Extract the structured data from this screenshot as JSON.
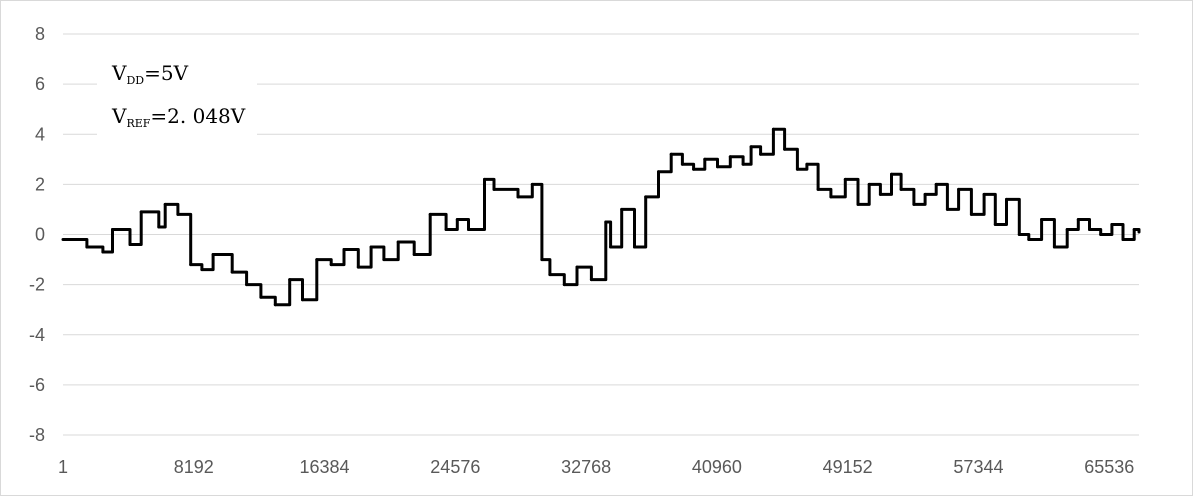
{
  "chart_data": {
    "type": "line",
    "title": "",
    "xlabel": "",
    "ylabel": "",
    "xlim": [
      1,
      67400
    ],
    "ylim": [
      -8,
      8
    ],
    "x_ticks": [
      1,
      8192,
      16384,
      24576,
      32768,
      40960,
      49152,
      57344,
      65536
    ],
    "x_tick_labels": [
      "1",
      "8192",
      "16384",
      "24576",
      "32768",
      "40960",
      "49152",
      "57344",
      "65536"
    ],
    "y_ticks": [
      8,
      6,
      4,
      2,
      0,
      -2,
      -4,
      -6,
      -8
    ],
    "y_tick_labels": [
      "8",
      "6",
      "4",
      "2",
      "0",
      "-2",
      "-4",
      "-6",
      "-8"
    ],
    "grid": true,
    "legend": "none",
    "annotations": [
      {
        "main": "V",
        "sub": "DD",
        "rest": "=5V"
      },
      {
        "main": "V",
        "sub": "REF",
        "rest": "=2. 048V"
      }
    ],
    "series": [
      {
        "color": "#000000",
        "x": [
          1,
          1500,
          2500,
          3100,
          4200,
          4900,
          6000,
          6400,
          7200,
          8000,
          8700,
          9400,
          10600,
          11500,
          12400,
          13300,
          14200,
          15000,
          15900,
          16800,
          17600,
          18500,
          19300,
          20100,
          21000,
          22000,
          23000,
          24000,
          24700,
          25400,
          26400,
          27000,
          28500,
          29400,
          30000,
          30500,
          31400,
          32200,
          33100,
          34000,
          34300,
          35000,
          35800,
          36500,
          37300,
          38100,
          38800,
          39500,
          40200,
          41000,
          41800,
          42600,
          43100,
          43700,
          44500,
          45200,
          46000,
          46600,
          47300,
          48100,
          49000,
          49800,
          50500,
          51200,
          51900,
          52500,
          53300,
          54000,
          54700,
          55400,
          56100,
          56900,
          57700,
          58400,
          59100,
          59900,
          60500,
          61300,
          62100,
          62900,
          63600,
          64300,
          65000,
          65700,
          66400,
          67100,
          67400
        ],
        "y": [
          -0.2,
          -0.5,
          -0.7,
          0.2,
          -0.4,
          0.9,
          0.3,
          1.2,
          0.8,
          -1.2,
          -1.4,
          -0.8,
          -1.5,
          -2.0,
          -2.5,
          -2.8,
          -1.8,
          -2.6,
          -1.0,
          -1.2,
          -0.6,
          -1.3,
          -0.5,
          -1.0,
          -0.3,
          -0.8,
          0.8,
          0.2,
          0.6,
          0.2,
          2.2,
          1.8,
          1.5,
          2.0,
          -1.0,
          -1.6,
          -2.0,
          -1.3,
          -1.8,
          0.5,
          -0.5,
          1.0,
          -0.5,
          1.5,
          2.5,
          3.2,
          2.8,
          2.6,
          3.0,
          2.7,
          3.1,
          2.8,
          3.5,
          3.2,
          4.2,
          3.4,
          2.6,
          2.8,
          1.8,
          1.5,
          2.2,
          1.2,
          2.0,
          1.6,
          2.4,
          1.8,
          1.2,
          1.6,
          2.0,
          1.0,
          1.8,
          0.8,
          1.6,
          0.4,
          1.4,
          0.0,
          -0.2,
          0.6,
          -0.5,
          0.2,
          0.6,
          0.2,
          0.0,
          0.4,
          -0.2,
          0.2,
          0.1
        ]
      }
    ]
  }
}
